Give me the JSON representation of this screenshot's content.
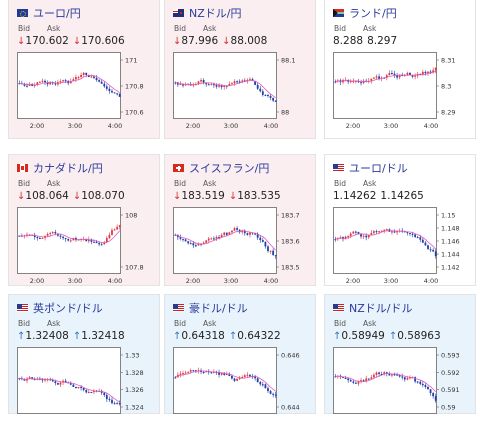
{
  "cards": [
    {
      "name": "ユーロ/円",
      "flag": "eu",
      "bg": "pink",
      "dir": "down",
      "bid": "170.602",
      "ask": "170.606",
      "ylabels": [
        "171",
        "170.8",
        "170.6"
      ],
      "xlabels": [
        "2:00",
        "3:00",
        "4:00"
      ],
      "trend": "down"
    },
    {
      "name": "NZドル/円",
      "flag": "nz",
      "bg": "pink",
      "dir": "down",
      "bid": "87.996",
      "ask": "88.008",
      "ylabels": [
        "88.1",
        "88"
      ],
      "xlabels": [
        "2:00",
        "3:00",
        "4:00"
      ],
      "trend": "down"
    },
    {
      "name": "ランド/円",
      "flag": "za",
      "bg": "white",
      "dir": "none",
      "bid": "8.288",
      "ask": "8.297",
      "ylabels": [
        "8.31",
        "8.3",
        "8.29"
      ],
      "xlabels": [
        "2:00",
        "3:00",
        "4:00"
      ],
      "trend": "flat"
    },
    {
      "name": "カナダドル/円",
      "flag": "ca",
      "bg": "pink",
      "dir": "down",
      "bid": "108.064",
      "ask": "108.070",
      "ylabels": [
        "108",
        "107.8"
      ],
      "xlabels": [
        "2:00",
        "3:00",
        "4:00"
      ],
      "trend": "up"
    },
    {
      "name": "スイスフラン/円",
      "flag": "ch",
      "bg": "pink",
      "dir": "down",
      "bid": "183.519",
      "ask": "183.535",
      "ylabels": [
        "183.7",
        "183.6",
        "183.5"
      ],
      "xlabels": [
        "2:00",
        "3:00",
        "4:00"
      ],
      "trend": "down"
    },
    {
      "name": "ユーロ/ドル",
      "flag": "us",
      "bg": "white",
      "dir": "none",
      "bid": "1.14262",
      "ask": "1.14265",
      "ylabels": [
        "1.15",
        "1.148",
        "1.146",
        "1.144",
        "1.142"
      ],
      "xlabels": [
        "2:00",
        "3:00",
        "4:00"
      ],
      "trend": "down"
    },
    {
      "name": "英ポンド/ドル",
      "flag": "us",
      "bg": "blue",
      "dir": "up",
      "bid": "1.32408",
      "ask": "1.32418",
      "ylabels": [
        "1.33",
        "1.328",
        "1.326",
        "1.324"
      ],
      "xlabels": [
        "",
        "",
        ""
      ],
      "trend": "down"
    },
    {
      "name": "豪ドル/ドル",
      "flag": "us",
      "bg": "blue",
      "dir": "up",
      "bid": "0.64318",
      "ask": "0.64322",
      "ylabels": [
        "0.646",
        "0.644"
      ],
      "xlabels": [
        "",
        "",
        ""
      ],
      "trend": "down"
    },
    {
      "name": "NZドル/ドル",
      "flag": "us",
      "bg": "blue",
      "dir": "up",
      "bid": "0.58949",
      "ask": "0.58963",
      "ylabels": [
        "0.593",
        "0.592",
        "0.591",
        "0.59"
      ],
      "xlabels": [
        "",
        "",
        ""
      ],
      "trend": "down"
    }
  ],
  "labels": {
    "bid": "Bid",
    "ask": "Ask"
  },
  "arrows": {
    "down": "↓",
    "up": "↑",
    "none": ""
  },
  "colors": {
    "up_candle": "#e0393e",
    "down_candle": "#1f3ea8",
    "ma": "#e05cc0",
    "title": "#2a3a9a",
    "pink_bg": "#fbeef0",
    "blue_bg": "#e9f3fb"
  }
}
